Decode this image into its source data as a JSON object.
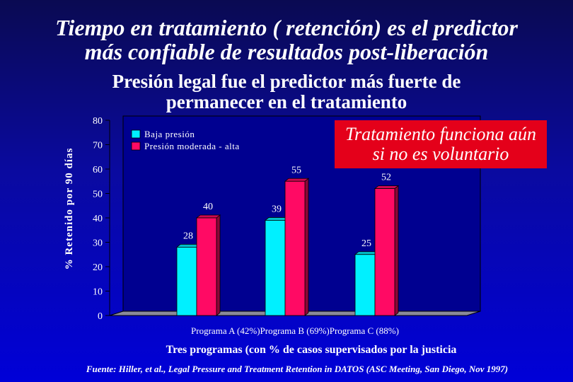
{
  "title_lines": [
    "Tiempo en tratamiento ( retención) es el predictor",
    "más confiable de resultados post-liberación"
  ],
  "subtitle_lines": [
    "Presión legal fue el predictor más fuerte de",
    "permanecer en el tratamiento"
  ],
  "callout_lines": [
    "Tratamiento funciona aún",
    "si no es voluntario"
  ],
  "source": "Fuente: Hiller, et al., Legal Pressure and Treatment Retention in DATOS (ASC Meeting, San Diego, Nov 1997)",
  "colors": {
    "background_top": "#0a0a52",
    "background_bottom": "#0000d8",
    "series_1": "#00f0ff",
    "series_2": "#ff0a64",
    "callout": "#e4001a",
    "plot_area": "#000090"
  },
  "chart_data": {
    "type": "bar",
    "style": "3d-clustered",
    "categories": [
      "Programa A (42%)",
      "Programa B (69%)",
      "Programa C (88%)"
    ],
    "series": [
      {
        "name": "Baja presión",
        "values": [
          28,
          39,
          25
        ],
        "color": "#00f0ff"
      },
      {
        "name": "Presión moderada - alta",
        "values": [
          40,
          55,
          52
        ],
        "color": "#ff0a64"
      }
    ],
    "xlabel": "Tres programas (con % de casos supervisados por la justicia",
    "ylabel": "% Retenido por 90 días",
    "ylim": [
      0,
      80
    ],
    "yticks": [
      0,
      10,
      20,
      30,
      40,
      50,
      60,
      70,
      80
    ],
    "legend": "top-left",
    "grid": false,
    "data_labels": true
  }
}
